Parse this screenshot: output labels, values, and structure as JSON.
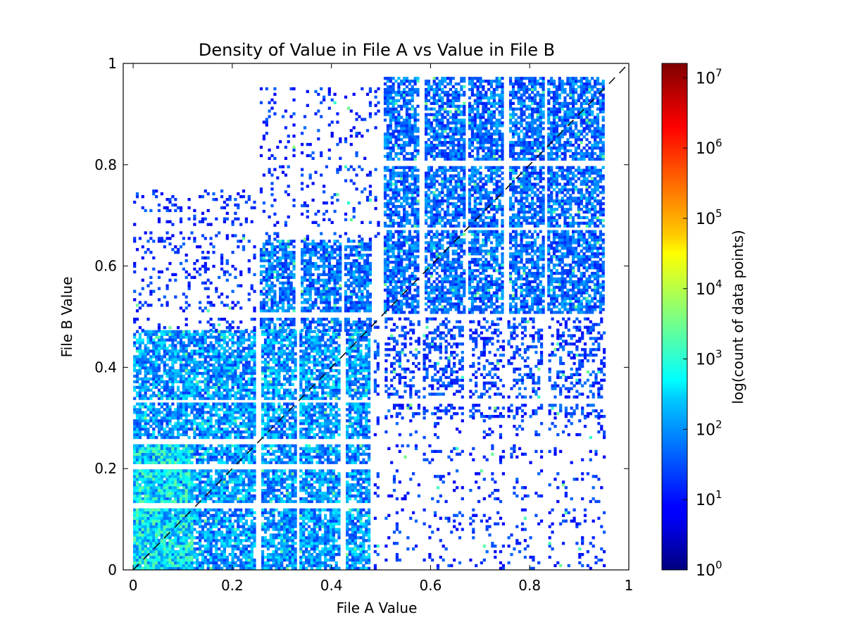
{
  "chart_data": {
    "type": "heatmap",
    "title": "Density of Value in File A vs Value in File B",
    "xlabel": "File A Value",
    "ylabel": "File B Value",
    "xlim": [
      -0.02,
      1.0
    ],
    "ylim": [
      0,
      1.0
    ],
    "x_ticks": [
      {
        "value": 0,
        "label": "0"
      },
      {
        "value": 0.2,
        "label": "0.2"
      },
      {
        "value": 0.4,
        "label": "0.4"
      },
      {
        "value": 0.6,
        "label": "0.6"
      },
      {
        "value": 0.8,
        "label": "0.8"
      },
      {
        "value": 1.0,
        "label": "1"
      }
    ],
    "y_ticks": [
      {
        "value": 0,
        "label": "0"
      },
      {
        "value": 0.2,
        "label": "0.2"
      },
      {
        "value": 0.4,
        "label": "0.4"
      },
      {
        "value": 0.6,
        "label": "0.6"
      },
      {
        "value": 0.8,
        "label": "0.8"
      },
      {
        "value": 1.0,
        "label": "1"
      }
    ],
    "reference_line": {
      "type": "diagonal",
      "from": [
        0,
        0
      ],
      "to": [
        1,
        1
      ],
      "style": "dashed",
      "color": "#000000"
    },
    "grid": false,
    "colorbar": {
      "label": "log(count of data points)",
      "scale": "log",
      "colormap": "jet",
      "range": [
        1,
        16000000
      ],
      "ticks": [
        {
          "value": 1,
          "base": "10",
          "exp": "0"
        },
        {
          "value": 10,
          "base": "10",
          "exp": "1"
        },
        {
          "value": 100,
          "base": "10",
          "exp": "2"
        },
        {
          "value": 1000,
          "base": "10",
          "exp": "3"
        },
        {
          "value": 10000,
          "base": "10",
          "exp": "4"
        },
        {
          "value": 100000,
          "base": "10",
          "exp": "5"
        },
        {
          "value": 1000000,
          "base": "10",
          "exp": "6"
        },
        {
          "value": 10000000,
          "base": "10",
          "exp": "7"
        }
      ]
    },
    "density_regions": [
      {
        "x": [
          0.0,
          0.48
        ],
        "y": [
          0.0,
          0.47
        ],
        "intensity": 0.32,
        "fill": 0.8
      },
      {
        "x": [
          0.0,
          0.12
        ],
        "y": [
          0.0,
          0.25
        ],
        "intensity": 0.42,
        "fill": 0.9
      },
      {
        "x": [
          0.25,
          0.48
        ],
        "y": [
          0.47,
          0.65
        ],
        "intensity": 0.28,
        "fill": 0.75
      },
      {
        "x": [
          0.5,
          0.95
        ],
        "y": [
          0.5,
          0.97
        ],
        "intensity": 0.27,
        "fill": 0.72
      },
      {
        "x": [
          0.48,
          0.95
        ],
        "y": [
          0.3,
          0.5
        ],
        "intensity": 0.22,
        "fill": 0.35
      },
      {
        "x": [
          0.0,
          0.25
        ],
        "y": [
          0.47,
          0.75
        ],
        "intensity": 0.2,
        "fill": 0.15
      },
      {
        "x": [
          0.48,
          0.95
        ],
        "y": [
          0.0,
          0.3
        ],
        "intensity": 0.2,
        "fill": 0.12
      },
      {
        "x": [
          0.25,
          0.5
        ],
        "y": [
          0.65,
          0.95
        ],
        "intensity": 0.2,
        "fill": 0.12
      }
    ]
  }
}
